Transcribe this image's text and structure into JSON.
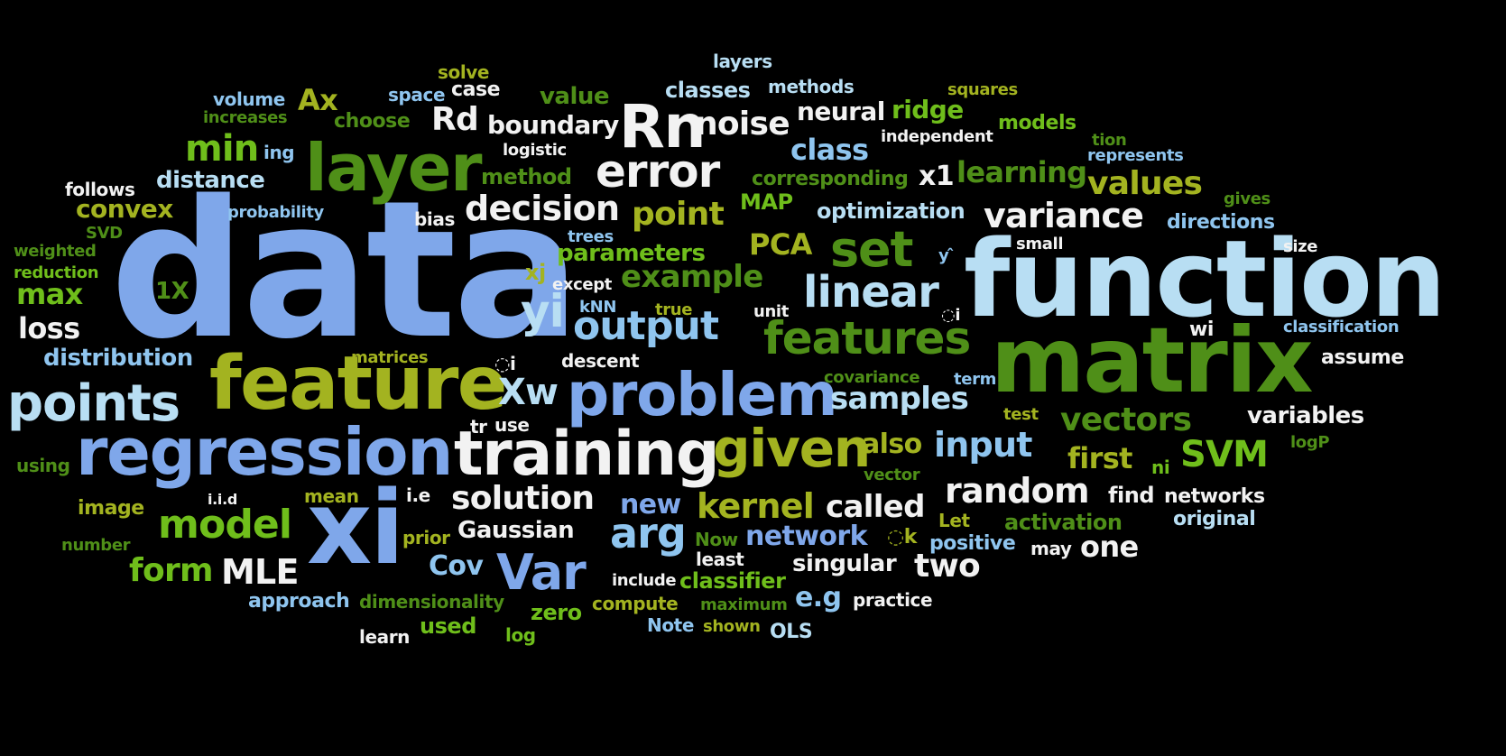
{
  "palette": {
    "background": "#000000",
    "white": "#f2f2f2",
    "pale_blue": "#b8def3",
    "sky_blue": "#8fc5ef",
    "blue": "#7fa7ea",
    "olive": "#a3b320",
    "green": "#6fbe1b",
    "dark_green": "#4f8f18"
  },
  "words": [
    {
      "text": "data",
      "color": "blue"
    },
    {
      "text": "function",
      "color": "pale_blue"
    },
    {
      "text": "matrix",
      "color": "dark_green"
    },
    {
      "text": "feature",
      "color": "olive"
    },
    {
      "text": "regression",
      "color": "blue"
    },
    {
      "text": "training",
      "color": "white"
    },
    {
      "text": "layer",
      "color": "dark_green"
    },
    {
      "text": "problem",
      "color": "blue"
    },
    {
      "text": "xi",
      "color": "blue"
    },
    {
      "text": "points",
      "color": "pale_blue"
    },
    {
      "text": "Rn",
      "color": "white"
    },
    {
      "text": "given",
      "color": "olive"
    },
    {
      "text": "features",
      "color": "dark_green"
    },
    {
      "text": "error",
      "color": "white"
    },
    {
      "text": "set",
      "color": "dark_green"
    },
    {
      "text": "linear",
      "color": "pale_blue"
    },
    {
      "text": "output",
      "color": "sky_blue"
    },
    {
      "text": "yi",
      "color": "pale_blue"
    },
    {
      "text": "decision",
      "color": "white"
    },
    {
      "text": "variance",
      "color": "white"
    },
    {
      "text": "random",
      "color": "white"
    },
    {
      "text": "model",
      "color": "green"
    },
    {
      "text": "arg",
      "color": "sky_blue"
    },
    {
      "text": "Var",
      "color": "blue"
    },
    {
      "text": "vectors",
      "color": "dark_green"
    },
    {
      "text": "input",
      "color": "sky_blue"
    },
    {
      "text": "SVM",
      "color": "green"
    },
    {
      "text": "kernel",
      "color": "olive"
    },
    {
      "text": "samples",
      "color": "pale_blue"
    },
    {
      "text": "min",
      "color": "green"
    },
    {
      "text": "point",
      "color": "olive"
    },
    {
      "text": "values",
      "color": "olive"
    },
    {
      "text": "solution",
      "color": "white"
    },
    {
      "text": "example",
      "color": "dark_green"
    },
    {
      "text": "Xw",
      "color": "pale_blue"
    },
    {
      "text": "MLE",
      "color": "white"
    },
    {
      "text": "form",
      "color": "green"
    },
    {
      "text": "noise",
      "color": "white"
    },
    {
      "text": "Rd",
      "color": "white"
    },
    {
      "text": "two",
      "color": "white"
    },
    {
      "text": "called",
      "color": "white"
    },
    {
      "text": "max",
      "color": "green"
    },
    {
      "text": "first",
      "color": "olive"
    },
    {
      "text": "network",
      "color": "blue"
    },
    {
      "text": "loss",
      "color": "white"
    },
    {
      "text": "new",
      "color": "blue"
    },
    {
      "text": "Ax",
      "color": "olive"
    },
    {
      "text": "also",
      "color": "olive"
    },
    {
      "text": "one",
      "color": "white"
    },
    {
      "text": "e.g",
      "color": "sky_blue"
    },
    {
      "text": "class",
      "color": "sky_blue"
    },
    {
      "text": "boundary",
      "color": "white"
    },
    {
      "text": "learning",
      "color": "dark_green"
    },
    {
      "text": "neural",
      "color": "white"
    },
    {
      "text": "PCA",
      "color": "olive"
    },
    {
      "text": "Cov",
      "color": "sky_blue"
    },
    {
      "text": "convex",
      "color": "olive"
    },
    {
      "text": "distribution",
      "color": "sky_blue"
    },
    {
      "text": "x1",
      "color": "white"
    },
    {
      "text": "ridge",
      "color": "green"
    },
    {
      "text": "parameters",
      "color": "green"
    },
    {
      "text": "Gaussian",
      "color": "white"
    },
    {
      "text": "value",
      "color": "dark_green"
    },
    {
      "text": "singular",
      "color": "white"
    },
    {
      "text": "classifier",
      "color": "green"
    },
    {
      "text": "zero",
      "color": "green"
    },
    {
      "text": "used",
      "color": "green"
    },
    {
      "text": "variables",
      "color": "white"
    },
    {
      "text": "distance",
      "color": "pale_blue"
    },
    {
      "text": "method",
      "color": "dark_green"
    },
    {
      "text": "classes",
      "color": "pale_blue"
    },
    {
      "text": "optimization",
      "color": "pale_blue"
    },
    {
      "text": "activation",
      "color": "dark_green"
    },
    {
      "text": "find",
      "color": "white"
    },
    {
      "text": "networks",
      "color": "white"
    },
    {
      "text": "positive",
      "color": "sky_blue"
    },
    {
      "text": "approach",
      "color": "sky_blue"
    },
    {
      "text": "MAP",
      "color": "green"
    },
    {
      "text": "models",
      "color": "green"
    },
    {
      "text": "assume",
      "color": "white"
    },
    {
      "text": "directions",
      "color": "sky_blue"
    },
    {
      "text": "original",
      "color": "pale_blue"
    },
    {
      "text": "choose",
      "color": "dark_green"
    },
    {
      "text": "case",
      "color": "white"
    },
    {
      "text": "xj",
      "color": "olive"
    },
    {
      "text": "image",
      "color": "olive"
    },
    {
      "text": "dimensionality",
      "color": "dark_green"
    },
    {
      "text": "compute",
      "color": "olive"
    },
    {
      "text": "OLS",
      "color": "pale_blue"
    },
    {
      "text": "corresponding",
      "color": "dark_green"
    },
    {
      "text": "methods",
      "color": "pale_blue"
    },
    {
      "text": "layers",
      "color": "pale_blue"
    },
    {
      "text": "solve",
      "color": "olive"
    },
    {
      "text": "volume",
      "color": "sky_blue"
    },
    {
      "text": "follows",
      "color": "white"
    },
    {
      "text": "bias",
      "color": "white"
    },
    {
      "text": "descent",
      "color": "white"
    },
    {
      "text": "i.e",
      "color": "white"
    },
    {
      "text": "Let",
      "color": "olive"
    },
    {
      "text": "prior",
      "color": "olive"
    },
    {
      "text": "Now",
      "color": "dark_green"
    },
    {
      "text": "mean",
      "color": "olive"
    },
    {
      "text": "practice",
      "color": "white"
    },
    {
      "text": "may",
      "color": "white"
    },
    {
      "text": "Note",
      "color": "sky_blue"
    },
    {
      "text": "log",
      "color": "green"
    },
    {
      "text": "learn",
      "color": "white"
    },
    {
      "text": "least",
      "color": "white"
    },
    {
      "text": "shown",
      "color": "olive"
    },
    {
      "text": "maximum",
      "color": "dark_green"
    },
    {
      "text": "include",
      "color": "white"
    },
    {
      "text": "space",
      "color": "sky_blue"
    },
    {
      "text": "increases",
      "color": "dark_green"
    },
    {
      "text": "ing",
      "color": "sky_blue"
    },
    {
      "text": "logistic",
      "color": "white"
    },
    {
      "text": "independent",
      "color": "white"
    },
    {
      "text": "squares",
      "color": "olive"
    },
    {
      "text": "tion",
      "color": "dark_green"
    },
    {
      "text": "represents",
      "color": "sky_blue"
    },
    {
      "text": "gives",
      "color": "dark_green"
    },
    {
      "text": "small",
      "color": "white"
    },
    {
      "text": "size",
      "color": "white"
    },
    {
      "text": "trees",
      "color": "sky_blue"
    },
    {
      "text": "except",
      "color": "white"
    },
    {
      "text": "kNN",
      "color": "sky_blue"
    },
    {
      "text": "true",
      "color": "olive"
    },
    {
      "text": "unit",
      "color": "white"
    },
    {
      "text": "wi",
      "color": "white"
    },
    {
      "text": "classification",
      "color": "sky_blue"
    },
    {
      "text": "probability",
      "color": "sky_blue"
    },
    {
      "text": "SVD",
      "color": "dark_green"
    },
    {
      "text": "weighted",
      "color": "dark_green"
    },
    {
      "text": "reduction",
      "color": "green"
    },
    {
      "text": "1X",
      "color": "dark_green"
    },
    {
      "text": "matrices",
      "color": "olive"
    },
    {
      "text": "covariance",
      "color": "dark_green"
    },
    {
      "text": "term",
      "color": "sky_blue"
    },
    {
      "text": "test",
      "color": "olive"
    },
    {
      "text": "logP",
      "color": "dark_green"
    },
    {
      "text": "vector",
      "color": "dark_green"
    },
    {
      "text": "ni",
      "color": "green"
    },
    {
      "text": "using",
      "color": "dark_green"
    },
    {
      "text": "i.i.d",
      "color": "white"
    },
    {
      "text": "number",
      "color": "dark_green"
    },
    {
      "text": "tr",
      "color": "white"
    },
    {
      "text": "use",
      "color": "white"
    },
    {
      "text": "y ̂",
      "color": "sky_blue"
    },
    {
      "text": "◌i",
      "color": "white"
    },
    {
      "text": "◌i",
      "color": "white"
    },
    {
      "text": "◌k",
      "color": "olive"
    }
  ]
}
